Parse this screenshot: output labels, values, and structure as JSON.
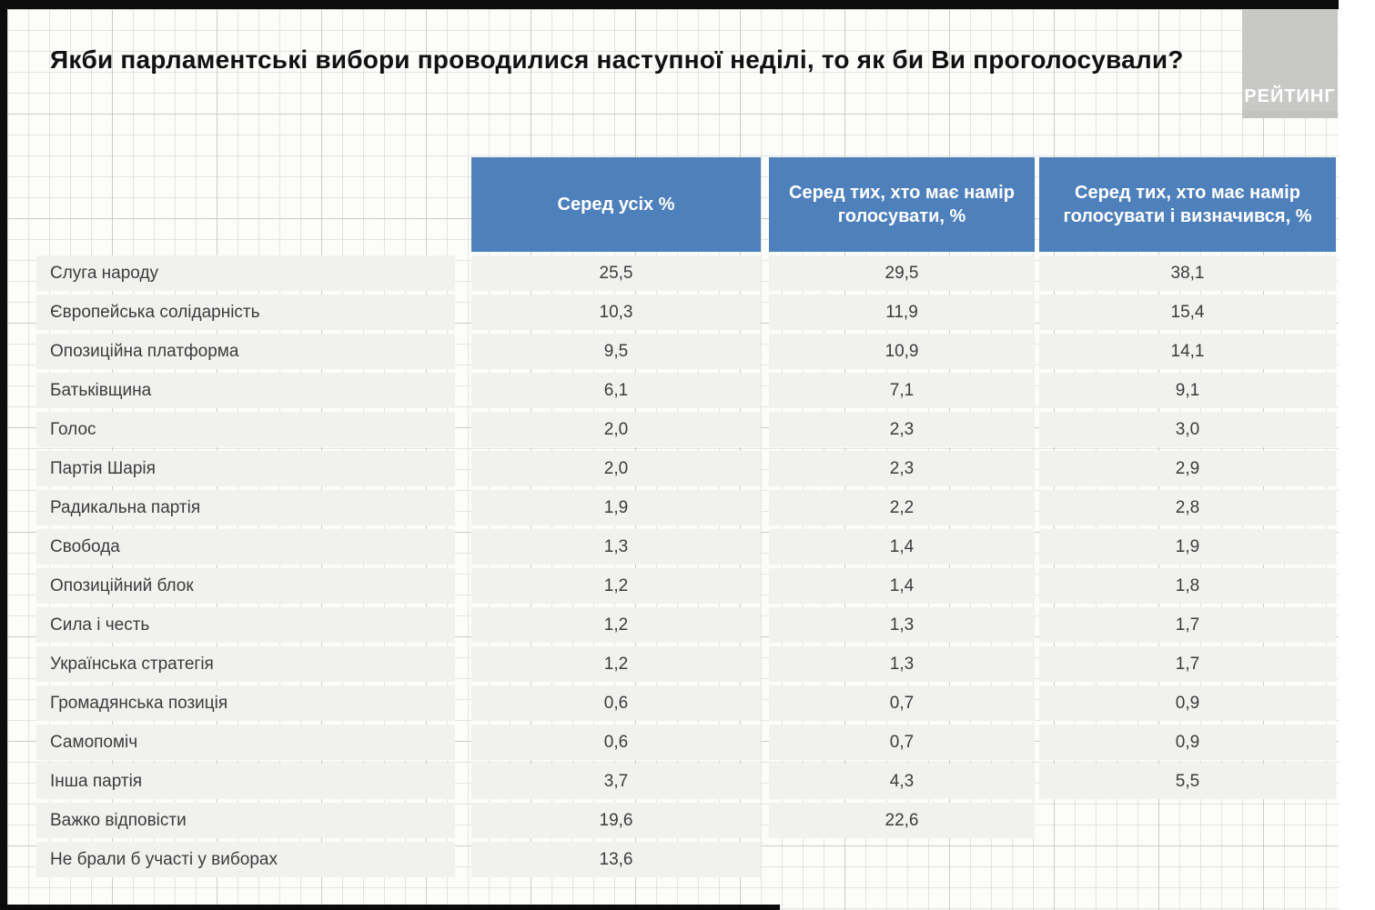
{
  "page": {
    "title": "Якби парламентські вибори проводилися наступної неділі, то як би Ви проголосували?"
  },
  "logo": {
    "text": "РЕЙТИНГ"
  },
  "colors": {
    "header_blue": "#4e80bc",
    "row_gray": "#f1f1ef",
    "logo_gray": "#c8c8c6",
    "frame_black": "#0c0c0c"
  },
  "table": {
    "columns": [
      {
        "label": "Серед усіх %"
      },
      {
        "label": "Серед тих, хто має намір голосувати, %"
      },
      {
        "label": "Серед тих, хто має намір голосувати і визначився, %"
      }
    ],
    "rows": [
      {
        "label": "Слуга народу",
        "values": [
          "25,5",
          "29,5",
          "38,1"
        ]
      },
      {
        "label": "Європейська солідарність",
        "values": [
          "10,3",
          "11,9",
          "15,4"
        ]
      },
      {
        "label": "Опозиційна платформа",
        "values": [
          "9,5",
          "10,9",
          "14,1"
        ]
      },
      {
        "label": "Батьківщина",
        "values": [
          "6,1",
          "7,1",
          "9,1"
        ]
      },
      {
        "label": "Голос",
        "values": [
          "2,0",
          "2,3",
          "3,0"
        ]
      },
      {
        "label": "Партія Шарія",
        "values": [
          "2,0",
          "2,3",
          "2,9"
        ]
      },
      {
        "label": "Радикальна партія",
        "values": [
          "1,9",
          "2,2",
          "2,8"
        ]
      },
      {
        "label": "Свобода",
        "values": [
          "1,3",
          "1,4",
          "1,9"
        ]
      },
      {
        "label": "Опозиційний блок",
        "values": [
          "1,2",
          "1,4",
          "1,8"
        ]
      },
      {
        "label": "Сила і честь",
        "values": [
          "1,2",
          "1,3",
          "1,7"
        ]
      },
      {
        "label": "Українська стратегія",
        "values": [
          "1,2",
          "1,3",
          "1,7"
        ]
      },
      {
        "label": "Громадянська позиція",
        "values": [
          "0,6",
          "0,7",
          "0,9"
        ]
      },
      {
        "label": "Самопоміч",
        "values": [
          "0,6",
          "0,7",
          "0,9"
        ]
      },
      {
        "label": "Інша партія",
        "values": [
          "3,7",
          "4,3",
          "5,5"
        ]
      },
      {
        "label": "Важко відповісти",
        "values": [
          "19,6",
          "22,6",
          null
        ]
      },
      {
        "label": "Не брали б участі у виборах",
        "values": [
          "13,6",
          null,
          null
        ]
      }
    ]
  },
  "chart_data": {
    "type": "table",
    "title": "Якби парламентські вибори проводилися наступної неділі, то як би Ви проголосували?",
    "columns": [
      "Серед усіх %",
      "Серед тих, хто має намір голосувати, %",
      "Серед тих, хто має намір голосувати і визначився, %"
    ],
    "rows": [
      [
        "Слуга народу",
        25.5,
        29.5,
        38.1
      ],
      [
        "Європейська солідарність",
        10.3,
        11.9,
        15.4
      ],
      [
        "Опозиційна платформа",
        9.5,
        10.9,
        14.1
      ],
      [
        "Батьківщина",
        6.1,
        7.1,
        9.1
      ],
      [
        "Голос",
        2.0,
        2.3,
        3.0
      ],
      [
        "Партія Шарія",
        2.0,
        2.3,
        2.9
      ],
      [
        "Радикальна партія",
        1.9,
        2.2,
        2.8
      ],
      [
        "Свобода",
        1.3,
        1.4,
        1.9
      ],
      [
        "Опозиційний блок",
        1.2,
        1.4,
        1.8
      ],
      [
        "Сила і честь",
        1.2,
        1.3,
        1.7
      ],
      [
        "Українська стратегія",
        1.2,
        1.3,
        1.7
      ],
      [
        "Громадянська позиція",
        0.6,
        0.7,
        0.9
      ],
      [
        "Самопоміч",
        0.6,
        0.7,
        0.9
      ],
      [
        "Інша партія",
        3.7,
        4.3,
        5.5
      ],
      [
        "Важко відповісти",
        19.6,
        22.6,
        null
      ],
      [
        "Не брали б участі у виборах",
        13.6,
        null,
        null
      ]
    ]
  }
}
